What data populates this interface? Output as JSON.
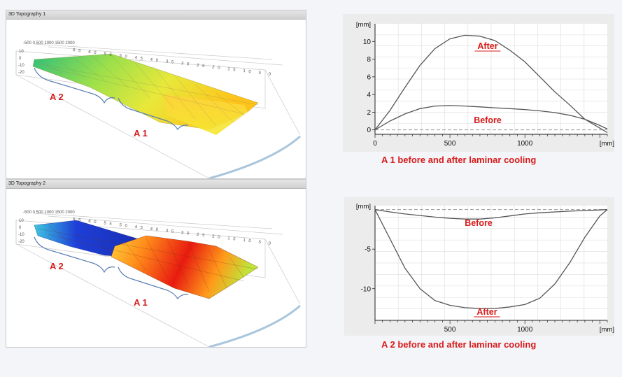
{
  "topo1": {
    "title": "3D Topography 1",
    "axis_top": "-500 0  500 1000 1500 2000",
    "axis_ticks": "65 60 55 50 45 40 35 30 25 20 15 10 5 0",
    "z_labels": [
      "10",
      "0",
      "-10",
      "-20"
    ],
    "zone_a2": "A 2",
    "zone_a1": "A 1"
  },
  "topo2": {
    "title": "3D Topography 2",
    "axis_top": "-500 0  500 1000 1500 2000",
    "axis_ticks": "65 60 55 50 45 40 35 30 25 20 15 10 5 0",
    "z_labels": [
      "10",
      "0",
      "-10",
      "-20"
    ],
    "zone_a2": "A 2",
    "zone_a1": "A 1"
  },
  "chart_data": [
    {
      "type": "line",
      "ylabel": "[mm]",
      "xlabel": "[mm]",
      "xlim": [
        0,
        1550
      ],
      "ylim": [
        -0.5,
        12
      ],
      "xticks": [
        0,
        500,
        1000
      ],
      "yticks": [
        0,
        2,
        4,
        6,
        8,
        10
      ],
      "grid": true,
      "series": [
        {
          "name": "After",
          "x": [
            0,
            100,
            200,
            300,
            400,
            500,
            600,
            700,
            800,
            900,
            1000,
            1100,
            1200,
            1300,
            1400,
            1500,
            1550
          ],
          "y": [
            0,
            2.2,
            4.8,
            7.3,
            9.2,
            10.3,
            10.7,
            10.6,
            10.1,
            9.0,
            7.7,
            6.0,
            4.3,
            2.8,
            1.2,
            0.2,
            -0.3
          ]
        },
        {
          "name": "Before",
          "x": [
            0,
            100,
            200,
            300,
            400,
            500,
            600,
            700,
            800,
            900,
            1000,
            1100,
            1200,
            1300,
            1400,
            1500,
            1550
          ],
          "y": [
            0,
            1.0,
            1.8,
            2.4,
            2.7,
            2.75,
            2.7,
            2.6,
            2.5,
            2.4,
            2.3,
            2.15,
            1.95,
            1.65,
            1.2,
            0.5,
            0.1
          ]
        }
      ],
      "annotations": [
        "After",
        "Before"
      ],
      "caption": "A 1 before and after laminar cooling"
    },
    {
      "type": "line",
      "ylabel": "[mm]",
      "xlabel": "[mm]",
      "xlim": [
        0,
        1550
      ],
      "ylim": [
        -14,
        0.5
      ],
      "xticks": [
        500,
        1000
      ],
      "yticks": [
        -5,
        -10
      ],
      "grid": true,
      "series": [
        {
          "name": "Before",
          "x": [
            0,
            100,
            200,
            300,
            400,
            500,
            600,
            700,
            800,
            900,
            1000,
            1100,
            1200,
            1300,
            1400,
            1500,
            1550
          ],
          "y": [
            0,
            -0.3,
            -0.55,
            -0.75,
            -0.95,
            -1.1,
            -1.2,
            -1.2,
            -1.05,
            -0.8,
            -0.55,
            -0.4,
            -0.3,
            -0.2,
            -0.12,
            -0.05,
            0
          ]
        },
        {
          "name": "After",
          "x": [
            0,
            100,
            200,
            300,
            400,
            500,
            600,
            700,
            800,
            900,
            1000,
            1100,
            1200,
            1300,
            1400,
            1500,
            1550
          ],
          "y": [
            0,
            -3.7,
            -7.4,
            -10.0,
            -11.5,
            -12.1,
            -12.4,
            -12.5,
            -12.5,
            -12.3,
            -12.0,
            -11.2,
            -9.4,
            -6.7,
            -3.5,
            -0.8,
            0
          ]
        }
      ],
      "annotations": [
        "Before",
        "After"
      ],
      "caption": "A 2 before and after laminar cooling"
    }
  ]
}
